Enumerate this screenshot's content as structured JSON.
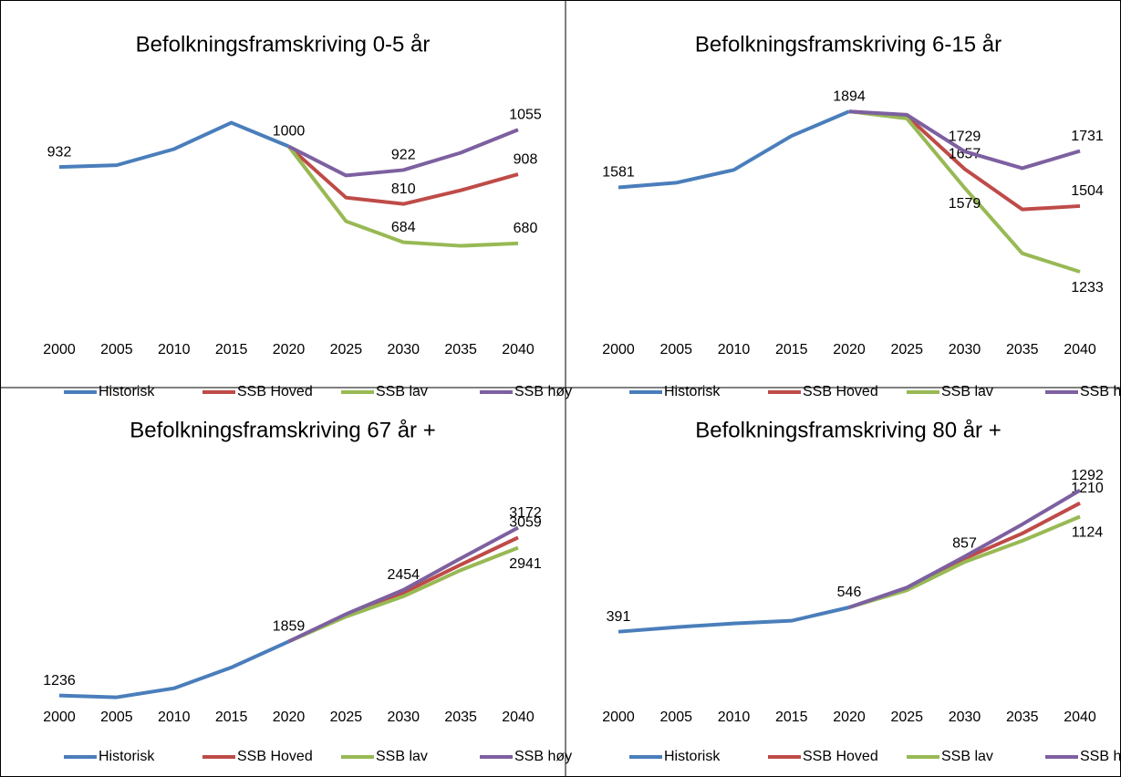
{
  "chart_data": [
    {
      "type": "line",
      "title": "Befolkningsframskriving 0-5 år",
      "categories": [
        "2000",
        "2005",
        "2010",
        "2015",
        "2020",
        "2025",
        "2030",
        "2035",
        "2040"
      ],
      "ylim": [
        400,
        1200
      ],
      "series": [
        {
          "name": "Historisk",
          "color": "#4a7ebb",
          "values": [
            932,
            938,
            991,
            1078,
            1000,
            null,
            null,
            null,
            null
          ],
          "value_labels": [
            "932",
            null,
            null,
            null,
            "1000",
            null,
            null,
            null,
            null
          ]
        },
        {
          "name": "SSB Hoved",
          "color": "#be4b48",
          "values": [
            null,
            null,
            null,
            null,
            1000,
            831,
            810,
            855,
            908
          ],
          "value_labels": [
            null,
            null,
            null,
            null,
            null,
            null,
            "810",
            null,
            "908"
          ]
        },
        {
          "name": "SSB lav",
          "color": "#98b954",
          "values": [
            null,
            null,
            null,
            null,
            1000,
            753,
            684,
            672,
            680
          ],
          "value_labels": [
            null,
            null,
            null,
            null,
            null,
            null,
            "684",
            null,
            "680"
          ]
        },
        {
          "name": "SSB høy",
          "color": "#7d60a0",
          "values": [
            null,
            null,
            null,
            null,
            1000,
            904,
            922,
            979,
            1055
          ],
          "value_labels": [
            null,
            null,
            null,
            null,
            null,
            null,
            "922",
            null,
            "1055"
          ]
        }
      ]
    },
    {
      "type": "line",
      "title": "Befolkningsframskriving 6-15 år",
      "categories": [
        "2000",
        "2005",
        "2010",
        "2015",
        "2020",
        "2025",
        "2030",
        "2035",
        "2040"
      ],
      "ylim": [
        1000,
        2000
      ],
      "series": [
        {
          "name": "Historisk",
          "color": "#4a7ebb",
          "values": [
            1581,
            1600,
            1653,
            1793,
            1894,
            null,
            null,
            null,
            null
          ],
          "value_labels": [
            "1581",
            null,
            null,
            null,
            "1894",
            null,
            null,
            null,
            null
          ]
        },
        {
          "name": "SSB Hoved",
          "color": "#be4b48",
          "values": [
            null,
            null,
            null,
            null,
            1894,
            1875,
            1657,
            1490,
            1504
          ],
          "value_labels": [
            null,
            null,
            null,
            null,
            null,
            null,
            "1657",
            null,
            "1504"
          ]
        },
        {
          "name": "SSB lav",
          "color": "#98b954",
          "values": [
            null,
            null,
            null,
            null,
            1894,
            1865,
            1579,
            1309,
            1233
          ],
          "value_labels": [
            null,
            null,
            null,
            null,
            null,
            null,
            "1579",
            null,
            "1233"
          ]
        },
        {
          "name": "SSB høy",
          "color": "#7d60a0",
          "values": [
            null,
            null,
            null,
            null,
            1894,
            1880,
            1729,
            1660,
            1731
          ],
          "value_labels": [
            null,
            null,
            null,
            null,
            null,
            null,
            "1729",
            null,
            "1731"
          ]
        }
      ]
    },
    {
      "type": "line",
      "title": "Befolkningsframskriving 67 år +",
      "categories": [
        "2000",
        "2005",
        "2010",
        "2015",
        "2020",
        "2025",
        "2030",
        "2035",
        "2040"
      ],
      "ylim": [
        1000,
        3800
      ],
      "series": [
        {
          "name": "Historisk",
          "color": "#4a7ebb",
          "values": [
            1236,
            1215,
            1319,
            1559,
            1859,
            null,
            null,
            null,
            null
          ],
          "value_labels": [
            "1236",
            null,
            null,
            null,
            "1859",
            null,
            null,
            null,
            null
          ]
        },
        {
          "name": "SSB Hoved",
          "color": "#be4b48",
          "values": [
            null,
            null,
            null,
            null,
            1859,
            2160,
            2422,
            2745,
            3059
          ],
          "value_labels": [
            null,
            null,
            null,
            null,
            null,
            null,
            null,
            null,
            "3059"
          ]
        },
        {
          "name": "SSB lav",
          "color": "#98b954",
          "values": [
            null,
            null,
            null,
            null,
            1859,
            2145,
            2380,
            2682,
            2941
          ],
          "value_labels": [
            null,
            null,
            null,
            null,
            null,
            null,
            null,
            null,
            "2941"
          ]
        },
        {
          "name": "SSB høy",
          "color": "#7d60a0",
          "values": [
            null,
            null,
            null,
            null,
            1859,
            2175,
            2454,
            2818,
            3172
          ],
          "value_labels": [
            null,
            null,
            null,
            null,
            null,
            null,
            "2454",
            null,
            "3172"
          ]
        }
      ]
    },
    {
      "type": "line",
      "title": "Befolkningsframskriving 80 år +",
      "categories": [
        "2000",
        "2005",
        "2010",
        "2015",
        "2020",
        "2025",
        "2030",
        "2035",
        "2040"
      ],
      "ylim": [
        0,
        1400
      ],
      "series": [
        {
          "name": "Historisk",
          "color": "#4a7ebb",
          "values": [
            391,
            420,
            444,
            461,
            546,
            null,
            null,
            null,
            null
          ],
          "value_labels": [
            "391",
            null,
            null,
            null,
            "546",
            null,
            null,
            null,
            null
          ]
        },
        {
          "name": "SSB Hoved",
          "color": "#be4b48",
          "values": [
            null,
            null,
            null,
            null,
            546,
            665,
            857,
            1017,
            1210
          ],
          "value_labels": [
            null,
            null,
            null,
            null,
            null,
            null,
            "857",
            null,
            "1210"
          ]
        },
        {
          "name": "SSB lav",
          "color": "#98b954",
          "values": [
            null,
            null,
            null,
            null,
            546,
            655,
            835,
            970,
            1124
          ],
          "value_labels": [
            null,
            null,
            null,
            null,
            null,
            null,
            null,
            null,
            "1124"
          ]
        },
        {
          "name": "SSB høy",
          "color": "#7d60a0",
          "values": [
            null,
            null,
            null,
            null,
            546,
            672,
            870,
            1075,
            1292
          ],
          "value_labels": [
            null,
            null,
            null,
            null,
            null,
            null,
            null,
            null,
            "1292"
          ]
        }
      ]
    }
  ]
}
